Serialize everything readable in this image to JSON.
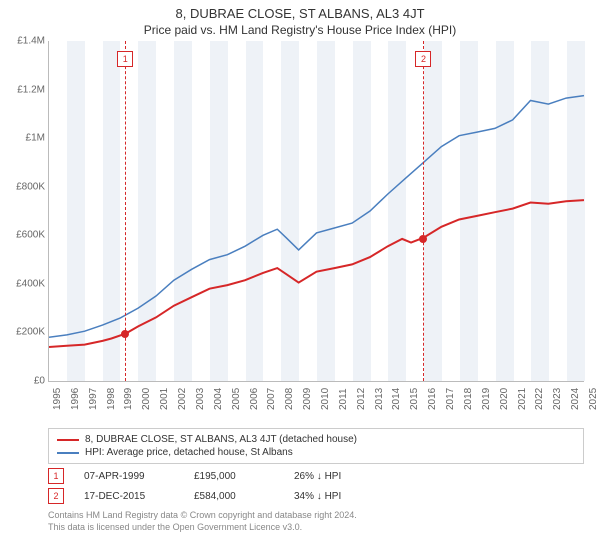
{
  "title": "8, DUBRAE CLOSE, ST ALBANS, AL3 4JT",
  "subtitle": "Price paid vs. HM Land Registry's House Price Index (HPI)",
  "chart": {
    "type": "line",
    "background_color": "#ffffff",
    "band_color": "#eef2f7",
    "axis_color": "#bbbbbb",
    "tick_font_size": 10,
    "x": {
      "min": 1995.0,
      "max": 2025.0,
      "ticks": [
        "1995",
        "1996",
        "1997",
        "1998",
        "1999",
        "2000",
        "2001",
        "2002",
        "2003",
        "2004",
        "2005",
        "2006",
        "2007",
        "2008",
        "2009",
        "2010",
        "2011",
        "2012",
        "2013",
        "2014",
        "2015",
        "2016",
        "2017",
        "2018",
        "2019",
        "2020",
        "2021",
        "2022",
        "2023",
        "2024",
        "2025"
      ]
    },
    "y": {
      "min": 0,
      "max": 1400000,
      "tick_step": 200000,
      "labels": [
        "£0",
        "£200K",
        "£400K",
        "£600K",
        "£800K",
        "£1M",
        "£1.2M",
        "£1.4M"
      ]
    },
    "series": [
      {
        "key": "property",
        "color": "#d62728",
        "line_width": 2,
        "legend": "8, DUBRAE CLOSE, ST ALBANS, AL3 4JT (detached house)",
        "points": [
          [
            1995.0,
            140000
          ],
          [
            1996.0,
            145000
          ],
          [
            1997.0,
            150000
          ],
          [
            1998.0,
            165000
          ],
          [
            1998.5,
            175000
          ],
          [
            1999.3,
            195000
          ],
          [
            2000.0,
            225000
          ],
          [
            2001.0,
            262000
          ],
          [
            2002.0,
            310000
          ],
          [
            2003.0,
            345000
          ],
          [
            2004.0,
            380000
          ],
          [
            2005.0,
            395000
          ],
          [
            2006.0,
            415000
          ],
          [
            2007.0,
            445000
          ],
          [
            2007.8,
            465000
          ],
          [
            2008.3,
            440000
          ],
          [
            2009.0,
            405000
          ],
          [
            2010.0,
            450000
          ],
          [
            2011.0,
            465000
          ],
          [
            2012.0,
            480000
          ],
          [
            2013.0,
            510000
          ],
          [
            2014.0,
            555000
          ],
          [
            2014.8,
            585000
          ],
          [
            2015.3,
            570000
          ],
          [
            2016.0,
            590000
          ],
          [
            2017.0,
            635000
          ],
          [
            2018.0,
            665000
          ],
          [
            2019.0,
            680000
          ],
          [
            2020.0,
            695000
          ],
          [
            2021.0,
            710000
          ],
          [
            2022.0,
            735000
          ],
          [
            2023.0,
            730000
          ],
          [
            2024.0,
            740000
          ],
          [
            2025.0,
            745000
          ]
        ]
      },
      {
        "key": "hpi",
        "color": "#4a7fbf",
        "line_width": 1.5,
        "legend": "HPI: Average price, detached house, St Albans",
        "points": [
          [
            1995.0,
            180000
          ],
          [
            1996.0,
            190000
          ],
          [
            1997.0,
            205000
          ],
          [
            1998.0,
            230000
          ],
          [
            1999.0,
            260000
          ],
          [
            2000.0,
            300000
          ],
          [
            2001.0,
            350000
          ],
          [
            2002.0,
            415000
          ],
          [
            2003.0,
            460000
          ],
          [
            2004.0,
            500000
          ],
          [
            2005.0,
            520000
          ],
          [
            2006.0,
            555000
          ],
          [
            2007.0,
            600000
          ],
          [
            2007.8,
            625000
          ],
          [
            2008.3,
            590000
          ],
          [
            2009.0,
            540000
          ],
          [
            2010.0,
            610000
          ],
          [
            2011.0,
            630000
          ],
          [
            2012.0,
            650000
          ],
          [
            2013.0,
            700000
          ],
          [
            2014.0,
            770000
          ],
          [
            2015.0,
            835000
          ],
          [
            2016.0,
            900000
          ],
          [
            2017.0,
            965000
          ],
          [
            2018.0,
            1010000
          ],
          [
            2019.0,
            1025000
          ],
          [
            2020.0,
            1040000
          ],
          [
            2021.0,
            1075000
          ],
          [
            2022.0,
            1155000
          ],
          [
            2023.0,
            1140000
          ],
          [
            2024.0,
            1165000
          ],
          [
            2025.0,
            1175000
          ]
        ]
      }
    ],
    "sale_markers": [
      {
        "n": "1",
        "x": 1999.27,
        "y": 195000,
        "color": "#d62728"
      },
      {
        "n": "2",
        "x": 2015.96,
        "y": 584000,
        "color": "#d62728"
      }
    ]
  },
  "sales": [
    {
      "n": "1",
      "date": "07-APR-1999",
      "price": "£195,000",
      "diff": "26% ↓ HPI",
      "color": "#d62728"
    },
    {
      "n": "2",
      "date": "17-DEC-2015",
      "price": "£584,000",
      "diff": "34% ↓ HPI",
      "color": "#d62728"
    }
  ],
  "footer_line1": "Contains HM Land Registry data © Crown copyright and database right 2024.",
  "footer_line2": "This data is licensed under the Open Government Licence v3.0."
}
